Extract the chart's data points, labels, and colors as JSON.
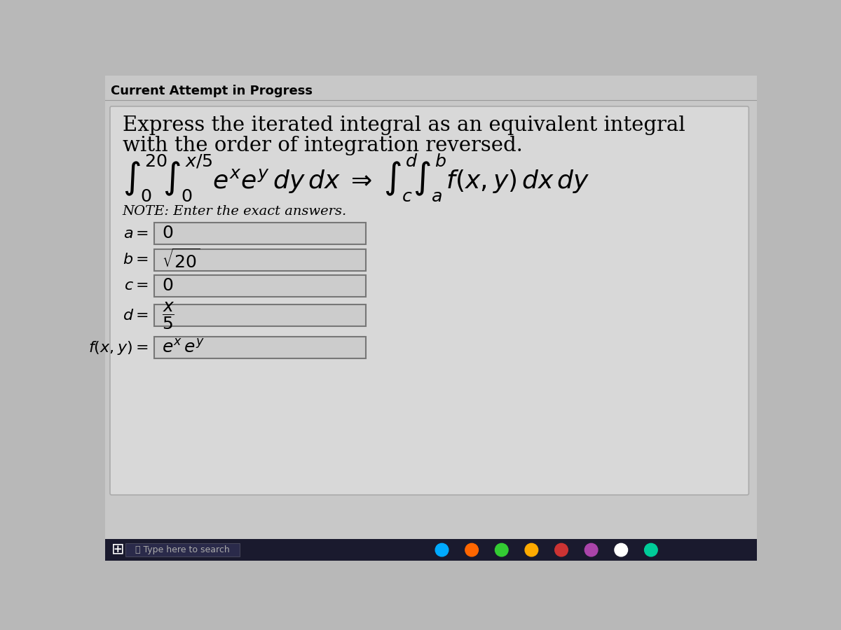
{
  "bg_color": "#b8b8b8",
  "panel_bg": "#c8c8c8",
  "header_text": "Current Attempt in Progress",
  "title_line1": "Express the iterated integral as an equivalent integral",
  "title_line2": "with the order of integration reversed.",
  "note_text": "NOTE: Enter the exact answers.",
  "field_box_color": "#c0c0c0",
  "field_border_color": "#888888",
  "taskbar_color": "#1a1a2e",
  "content_box_color": "#d8d8d8",
  "content_box_border": "#aaaaaa"
}
